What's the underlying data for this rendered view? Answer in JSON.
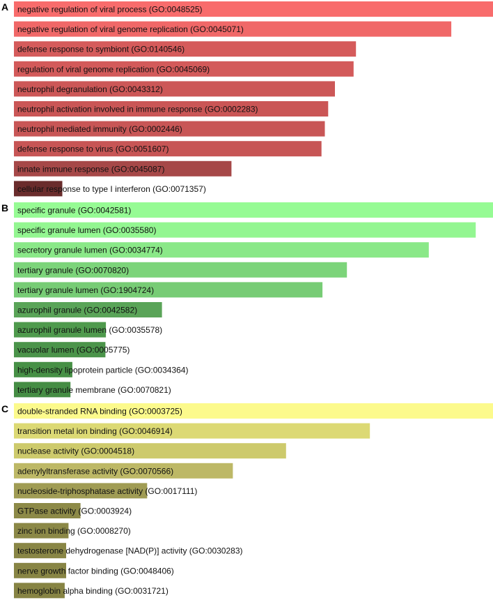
{
  "chart_data": [
    {
      "type": "bar",
      "orientation": "horizontal",
      "panel": "A",
      "categories": [
        "negative regulation of viral process (GO:0048525)",
        "negative regulation of viral genome replication (GO:0045071)",
        "defense response to symbiont (GO:0140546)",
        "regulation of viral genome replication (GO:0045069)",
        "neutrophil degranulation (GO:0043312)",
        "neutrophil activation involved in immune response (GO:0002283)",
        "neutrophil mediated immunity (GO:0002446)",
        "defense response to virus (GO:0051607)",
        "innate immune response (GO:0045087)",
        "cellular response to type I interferon (GO:0071357)"
      ],
      "values": [
        100,
        91.3,
        71.4,
        70.9,
        67.0,
        65.6,
        64.9,
        64.2,
        45.4,
        10.1
      ],
      "colors": [
        "#f86c6c",
        "#f06868",
        "#d55b5b",
        "#d35a5a",
        "#cc5757",
        "#ca5656",
        "#c85656",
        "#c75555",
        "#a64848",
        "#6a2c2c"
      ],
      "xlim": [
        0,
        100
      ]
    },
    {
      "type": "bar",
      "orientation": "horizontal",
      "panel": "B",
      "categories": [
        "specific granule (GO:0042581)",
        "specific granule lumen (GO:0035580)",
        "secretory granule lumen (GO:0034774)",
        "tertiary granule (GO:0070820)",
        "tertiary granule lumen (GO:1904724)",
        "azurophil granule (GO:0042582)",
        "azurophil granule lumen (GO:0035578)",
        "vacuolar lumen (GO:0005775)",
        "high-density lipoprotein particle (GO:0034364)",
        "tertiary granule membrane (GO:0070821)"
      ],
      "values": [
        100,
        96.4,
        86.6,
        69.5,
        64.4,
        30.9,
        19.2,
        19.1,
        12.2,
        11.8
      ],
      "colors": [
        "#96fb94",
        "#93f691",
        "#8ae888",
        "#7cd47a",
        "#77cc75",
        "#5aa458",
        "#4f9a4d",
        "#4b944a",
        "#479046",
        "#458d44"
      ],
      "xlim": [
        0,
        100
      ]
    },
    {
      "type": "bar",
      "orientation": "horizontal",
      "panel": "C",
      "categories": [
        "double-stranded RNA binding (GO:0003725)",
        "transition metal ion binding (GO:0046914)",
        "nuclease activity (GO:0004518)",
        "adenylyltransferase activity (GO:0070566)",
        "nucleoside-triphosphatase activity (GO:0017111)",
        "GTPase activity (GO:0003924)",
        "zinc ion binding (GO:0008270)",
        "testosterone dehydrogenase [NAD(P)] activity (GO:0030283)",
        "nerve growth factor binding (GO:0048406)",
        "hemoglobin alpha binding (GO:0031721)"
      ],
      "values": [
        100,
        74.3,
        56.8,
        45.7,
        27.8,
        13.9,
        11.4,
        10.9,
        10.9,
        10.6
      ],
      "colors": [
        "#fcfa8c",
        "#dcd974",
        "#cdca6c",
        "#bdb866",
        "#a09c54",
        "#8d8a48",
        "#8b8847",
        "#898646",
        "#888545",
        "#878444"
      ],
      "xlim": [
        0,
        100
      ]
    }
  ]
}
